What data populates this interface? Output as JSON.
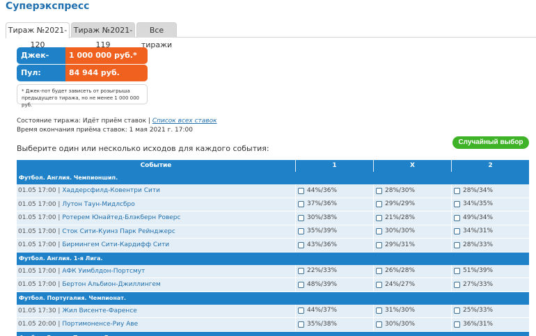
{
  "page": {
    "title": "Суперэкспресс"
  },
  "tabs": [
    {
      "label": "Тираж №2021-120",
      "active": true
    },
    {
      "label": "Тираж №2021-119",
      "active": false
    },
    {
      "label": "Все тиражи",
      "active": false
    }
  ],
  "jackpot": {
    "label": "Джек-пот:",
    "value": "1 000 000 руб.*"
  },
  "pool": {
    "label": "Пул:",
    "value": "84 944 руб."
  },
  "note": "* Джек-пот будет зависеть от розыгрыша предыдущего тиража, но не менее 1 000 000 руб.",
  "draw_state": {
    "label": "Состояние тиража: Идёт приём ставок |",
    "link": "Список всех ставок",
    "deadline": "Время окончания приёма ставок: 1 мая 2021 г. 17:00"
  },
  "choose_text": "Выберите один или несколько исходов для каждого события:",
  "random_button": "Случайный выбор",
  "table": {
    "headers": [
      "Событие",
      "1",
      "X",
      "2"
    ],
    "groups": [
      {
        "league": "Футбол. Англия. Чемпионшип.",
        "rows": [
          {
            "time": "01.05 17:00 |",
            "match": "Хаддерсфилд-Ковентри Сити",
            "o1": "44%/36%",
            "ox": "28%/30%",
            "o2": "28%/34%"
          },
          {
            "time": "01.05 17:00 |",
            "match": "Лутон Таун-Мидлсбро",
            "o1": "37%/36%",
            "ox": "29%/29%",
            "o2": "34%/35%"
          },
          {
            "time": "01.05 17:00 |",
            "match": "Ротерем Юнайтед-Блэкберн Роверс",
            "o1": "30%/38%",
            "ox": "21%/28%",
            "o2": "49%/34%"
          },
          {
            "time": "01.05 17:00 |",
            "match": "Сток Сити-Куинз Парк Рейнджерс",
            "o1": "35%/39%",
            "ox": "30%/30%",
            "o2": "34%/31%"
          },
          {
            "time": "01.05 17:00 |",
            "match": "Бирмингем Сити-Кардифф Сити",
            "o1": "43%/36%",
            "ox": "29%/31%",
            "o2": "28%/33%"
          }
        ]
      },
      {
        "league": "Футбол. Англия. 1-я Лига.",
        "rows": [
          {
            "time": "01.05 17:00 |",
            "match": "АФК Уимблдон-Портсмут",
            "o1": "22%/33%",
            "ox": "26%/28%",
            "o2": "51%/39%"
          },
          {
            "time": "01.05 17:00 |",
            "match": "Бертон Альбион-Джиллингем",
            "o1": "48%/39%",
            "ox": "24%/27%",
            "o2": "27%/33%"
          }
        ]
      },
      {
        "league": "Футбол. Португалия. Чемпионат.",
        "rows": [
          {
            "time": "01.05 17:30 |",
            "match": "Жил Висенте-Фаренсе",
            "o1": "44%/37%",
            "ox": "31%/30%",
            "o2": "25%/33%"
          },
          {
            "time": "01.05 20:00 |",
            "match": "Портимоненсе-Риу Аве",
            "o1": "35%/38%",
            "ox": "30%/30%",
            "o2": "36%/31%"
          }
        ]
      },
      {
        "league": "Футбол. Россия. Премьер-Лига.",
        "rows": []
      }
    ]
  }
}
